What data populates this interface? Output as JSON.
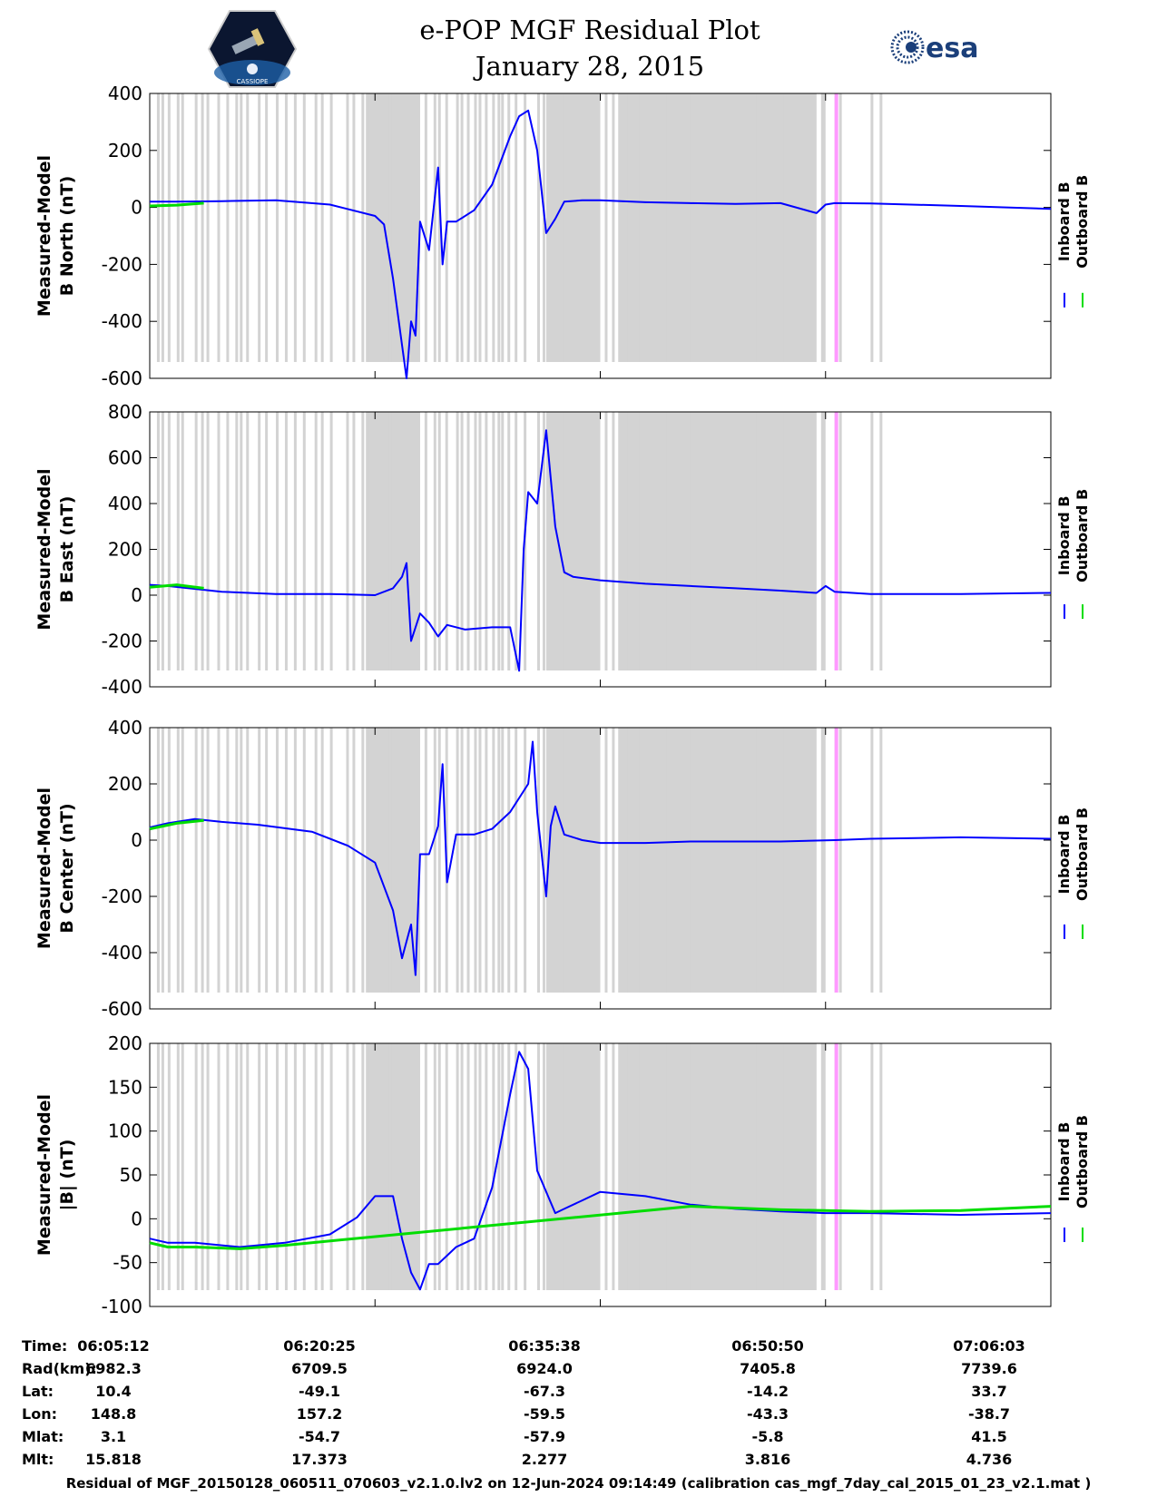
{
  "header": {
    "title_line1": "e-POP MGF Residual Plot",
    "title_line2": "January 28, 2015",
    "esa_text": "esa",
    "cassiope_text": "CASSIOPE"
  },
  "colors": {
    "inboard": "#0000ff",
    "outboard": "#00dd00",
    "gap": "#d3d3d3",
    "marker": "#ff99ff"
  },
  "chart_data": [
    {
      "type": "line",
      "id": "north",
      "ylabel_line1": "Measured-Model",
      "ylabel_line2": "B North (nT)",
      "ylim": [
        -600,
        400
      ],
      "yticks": [
        "400",
        "200",
        "0",
        "-200",
        "-400",
        "-600"
      ],
      "legend": [
        "Inboard B",
        "Outboard B"
      ],
      "series": [
        {
          "name": "Inboard B",
          "x": [
            0,
            0.03,
            0.08,
            0.14,
            0.2,
            0.25,
            0.26,
            0.27,
            0.285,
            0.29,
            0.295,
            0.3,
            0.31,
            0.32,
            0.325,
            0.33,
            0.34,
            0.36,
            0.38,
            0.4,
            0.41,
            0.42,
            0.43,
            0.44,
            0.45,
            0.46,
            0.48,
            0.5,
            0.55,
            0.6,
            0.65,
            0.7,
            0.74,
            0.75,
            0.76,
            0.8,
            0.9,
            1.0
          ],
          "values": [
            20,
            20,
            22,
            25,
            10,
            -30,
            -60,
            -250,
            -600,
            -400,
            -450,
            -50,
            -150,
            140,
            -200,
            -50,
            -50,
            -10,
            80,
            250,
            320,
            340,
            200,
            -90,
            -40,
            20,
            25,
            25,
            18,
            15,
            12,
            15,
            -20,
            10,
            15,
            14,
            5,
            -5
          ]
        },
        {
          "name": "Outboard B",
          "x": [
            0,
            0.03,
            0.06
          ],
          "values": [
            5,
            8,
            15
          ]
        }
      ]
    },
    {
      "type": "line",
      "id": "east",
      "ylabel_line1": "Measured-Model",
      "ylabel_line2": "B East (nT)",
      "ylim": [
        -400,
        800
      ],
      "yticks": [
        "800",
        "600",
        "400",
        "200",
        "0",
        "-200",
        "-400"
      ],
      "legend": [
        "Inboard B",
        "Outboard B"
      ],
      "series": [
        {
          "name": "Inboard B",
          "x": [
            0,
            0.02,
            0.08,
            0.14,
            0.2,
            0.25,
            0.27,
            0.28,
            0.285,
            0.29,
            0.3,
            0.31,
            0.32,
            0.33,
            0.35,
            0.38,
            0.4,
            0.41,
            0.415,
            0.42,
            0.43,
            0.44,
            0.45,
            0.46,
            0.47,
            0.5,
            0.55,
            0.6,
            0.65,
            0.7,
            0.74,
            0.75,
            0.76,
            0.8,
            0.9,
            1.0
          ],
          "values": [
            45,
            40,
            15,
            5,
            5,
            0,
            30,
            80,
            140,
            -200,
            -80,
            -120,
            -180,
            -130,
            -150,
            -140,
            -140,
            -330,
            200,
            450,
            400,
            720,
            300,
            100,
            80,
            65,
            50,
            40,
            30,
            20,
            10,
            40,
            15,
            5,
            5,
            10
          ]
        },
        {
          "name": "Outboard B",
          "x": [
            0,
            0.03,
            0.06
          ],
          "values": [
            35,
            45,
            30
          ]
        }
      ]
    },
    {
      "type": "line",
      "id": "center",
      "ylabel_line1": "Measured-Model",
      "ylabel_line2": "B Center (nT)",
      "ylim": [
        -600,
        400
      ],
      "yticks": [
        "400",
        "200",
        "0",
        "-200",
        "-400",
        "-600"
      ],
      "legend": [
        "Inboard B",
        "Outboard B"
      ],
      "series": [
        {
          "name": "Inboard B",
          "x": [
            0,
            0.02,
            0.05,
            0.08,
            0.12,
            0.18,
            0.22,
            0.25,
            0.27,
            0.28,
            0.29,
            0.295,
            0.3,
            0.31,
            0.32,
            0.325,
            0.33,
            0.34,
            0.36,
            0.38,
            0.4,
            0.42,
            0.425,
            0.43,
            0.44,
            0.445,
            0.45,
            0.46,
            0.48,
            0.5,
            0.55,
            0.6,
            0.7,
            0.76,
            0.8,
            0.9,
            1.0
          ],
          "values": [
            45,
            60,
            75,
            65,
            55,
            30,
            -20,
            -80,
            -250,
            -420,
            -300,
            -480,
            -50,
            -50,
            50,
            270,
            -150,
            20,
            20,
            40,
            100,
            200,
            350,
            100,
            -200,
            50,
            120,
            20,
            0,
            -10,
            -10,
            -5,
            -5,
            0,
            5,
            10,
            5
          ]
        },
        {
          "name": "Outboard B",
          "x": [
            0,
            0.03,
            0.06
          ],
          "values": [
            40,
            60,
            70
          ]
        }
      ]
    },
    {
      "type": "line",
      "id": "magnitude",
      "ylabel_line1": "Measured-Model",
      "ylabel_line2": "|B| (nT)",
      "ylim": [
        -100,
        210
      ],
      "yticks": [
        "200",
        "150",
        "100",
        "50",
        "0",
        "-50",
        "-100"
      ],
      "legend": [
        "Inboard B",
        "Outboard B"
      ],
      "series": [
        {
          "name": "Inboard B",
          "x": [
            0,
            0.02,
            0.05,
            0.1,
            0.15,
            0.2,
            0.23,
            0.25,
            0.27,
            0.28,
            0.29,
            0.3,
            0.31,
            0.32,
            0.33,
            0.34,
            0.36,
            0.38,
            0.4,
            0.41,
            0.42,
            0.43,
            0.45,
            0.46,
            0.48,
            0.5,
            0.55,
            0.6,
            0.65,
            0.7,
            0.75,
            0.8,
            0.9,
            1.0
          ],
          "values": [
            -20,
            -25,
            -25,
            -30,
            -25,
            -15,
            5,
            30,
            30,
            -20,
            -60,
            -80,
            -50,
            -50,
            -40,
            -30,
            -20,
            40,
            150,
            200,
            180,
            60,
            10,
            15,
            25,
            35,
            30,
            20,
            15,
            12,
            10,
            10,
            8,
            10
          ]
        },
        {
          "name": "Outboard B",
          "x": [
            0,
            0.02,
            0.05,
            0.1,
            0.15,
            0.6,
            0.7,
            0.8,
            0.9,
            1.0
          ],
          "values": [
            -25,
            -30,
            -30,
            -32,
            -28,
            18,
            14,
            12,
            13,
            18
          ]
        }
      ]
    }
  ],
  "x_axis": {
    "ticks": [
      "06:05:12",
      "06:20:25",
      "06:35:38",
      "06:50:50",
      "07:06:03"
    ]
  },
  "gaps": {
    "thin": [
      0.008,
      0.013,
      0.02,
      0.03,
      0.035,
      0.05,
      0.057,
      0.063,
      0.075,
      0.085,
      0.095,
      0.1,
      0.107,
      0.12,
      0.128,
      0.14,
      0.15,
      0.16,
      0.17,
      0.183,
      0.19,
      0.2,
      0.218,
      0.225,
      0.235,
      0.24,
      0.25,
      0.262,
      0.268,
      0.275,
      0.285,
      0.29,
      0.297,
      0.305,
      0.315,
      0.32,
      0.328,
      0.34,
      0.345,
      0.352,
      0.36,
      0.365,
      0.372,
      0.38,
      0.386,
      0.39,
      0.397,
      0.405,
      0.415,
      0.43,
      0.436,
      0.442,
      0.46,
      0.505,
      0.513,
      0.52,
      0.527,
      0.54,
      0.56,
      0.57,
      0.578,
      0.585,
      0.59,
      0.6,
      0.61,
      0.622,
      0.64,
      0.655,
      0.67,
      0.68,
      0.69,
      0.7,
      0.705,
      0.715,
      0.72,
      0.76,
      0.765,
      0.8,
      0.81
    ],
    "blocks": [
      [
        0.24,
        0.3
      ],
      [
        0.44,
        0.5
      ],
      [
        0.52,
        0.74
      ],
      [
        0.745,
        0.75
      ]
    ],
    "marker": [
      0.76,
      0.764
    ]
  },
  "footer": {
    "rows": [
      {
        "label": "Time:",
        "values": [
          "06:05:12",
          "06:20:25",
          "06:35:38",
          "06:50:50",
          "07:06:03"
        ]
      },
      {
        "label": "Rad(km):",
        "values": [
          "6982.3",
          "6709.5",
          "6924.0",
          "7405.8",
          "7739.6"
        ]
      },
      {
        "label": "Lat:",
        "values": [
          "10.4",
          "-49.1",
          "-67.3",
          "-14.2",
          "33.7"
        ]
      },
      {
        "label": "Lon:",
        "values": [
          "148.8",
          "157.2",
          "-59.5",
          "-43.3",
          "-38.7"
        ]
      },
      {
        "label": "Mlat:",
        "values": [
          "3.1",
          "-54.7",
          "-57.9",
          "-5.8",
          "41.5"
        ]
      },
      {
        "label": "Mlt:",
        "values": [
          "15.818",
          "17.373",
          "2.277",
          "3.816",
          "4.736"
        ]
      }
    ],
    "caption": "Residual of MGF_20150128_060511_070603_v2.1.0.lv2 on 12-Jun-2024 09:14:49 (calibration cas_mgf_7day_cal_2015_01_23_v2.1.mat )"
  }
}
